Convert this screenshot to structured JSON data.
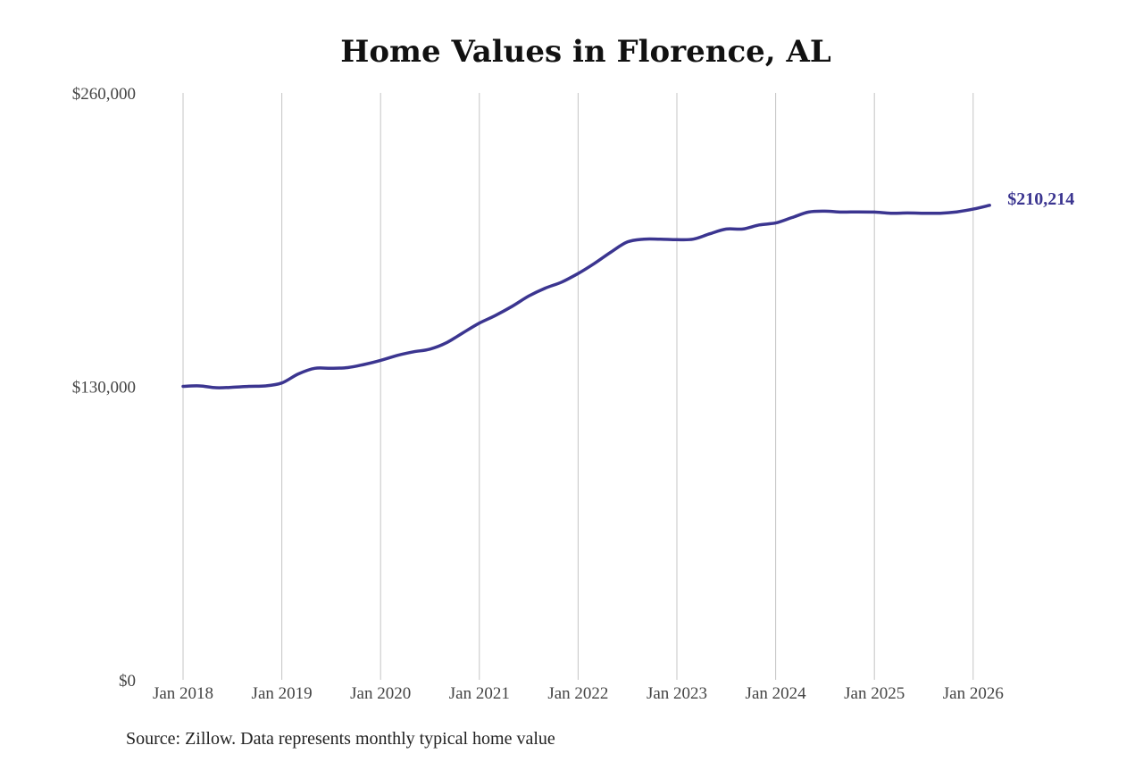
{
  "chart_data": {
    "type": "line",
    "title": "Home Values in Florence, AL",
    "xlabel": "",
    "ylabel": "",
    "x_ticks": [
      "Jan 2018",
      "Jan 2019",
      "Jan 2020",
      "Jan 2021",
      "Jan 2022",
      "Jan 2023",
      "Jan 2024",
      "Jan 2025",
      "Jan 2026"
    ],
    "y_ticks": [
      "$0",
      "$130,000",
      "$260,000"
    ],
    "ylim": [
      0,
      260000
    ],
    "xlim": [
      "2018-01",
      "2026-03"
    ],
    "grid": "vertical",
    "line_color": "#3b3590",
    "end_label": "$210,214",
    "series": [
      {
        "values": [
          [
            "2018-01",
            130000
          ],
          [
            "2018-03",
            130200
          ],
          [
            "2018-05",
            129400
          ],
          [
            "2018-07",
            129600
          ],
          [
            "2018-09",
            130000
          ],
          [
            "2018-11",
            130200
          ],
          [
            "2019-01",
            131500
          ],
          [
            "2019-03",
            135500
          ],
          [
            "2019-05",
            138000
          ],
          [
            "2019-07",
            138000
          ],
          [
            "2019-09",
            138300
          ],
          [
            "2019-11",
            139700
          ],
          [
            "2020-01",
            141500
          ],
          [
            "2020-03",
            143700
          ],
          [
            "2020-05",
            145300
          ],
          [
            "2020-07",
            146500
          ],
          [
            "2020-09",
            149300
          ],
          [
            "2020-11",
            153700
          ],
          [
            "2021-01",
            158000
          ],
          [
            "2021-03",
            161500
          ],
          [
            "2021-05",
            165500
          ],
          [
            "2021-07",
            170000
          ],
          [
            "2021-09",
            173500
          ],
          [
            "2021-11",
            176200
          ],
          [
            "2022-01",
            180000
          ],
          [
            "2022-03",
            184500
          ],
          [
            "2022-05",
            189500
          ],
          [
            "2022-07",
            194000
          ],
          [
            "2022-09",
            195200
          ],
          [
            "2022-11",
            195200
          ],
          [
            "2023-01",
            195000
          ],
          [
            "2023-03",
            195200
          ],
          [
            "2023-05",
            197600
          ],
          [
            "2023-07",
            199700
          ],
          [
            "2023-09",
            199700
          ],
          [
            "2023-11",
            201500
          ],
          [
            "2024-01",
            202400
          ],
          [
            "2024-03",
            204800
          ],
          [
            "2024-05",
            207200
          ],
          [
            "2024-07",
            207600
          ],
          [
            "2024-09",
            207200
          ],
          [
            "2024-11",
            207300
          ],
          [
            "2025-01",
            207200
          ],
          [
            "2025-03",
            206700
          ],
          [
            "2025-05",
            206800
          ],
          [
            "2025-07",
            206700
          ],
          [
            "2025-09",
            206700
          ],
          [
            "2025-11",
            207300
          ],
          [
            "2026-01",
            208500
          ],
          [
            "2026-03",
            210214
          ]
        ]
      }
    ]
  },
  "source_note": "Source: Zillow. Data represents monthly typical home value"
}
